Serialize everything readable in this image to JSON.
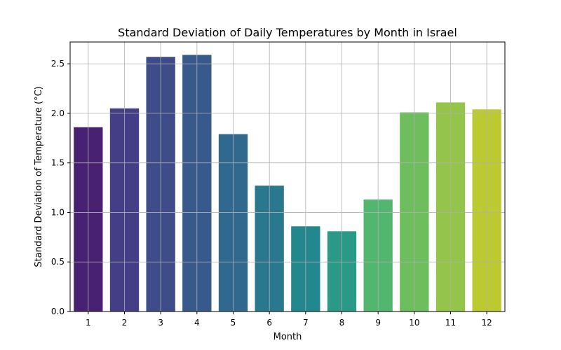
{
  "chart_data": {
    "type": "bar",
    "title": "Standard Deviation of Daily Temperatures by Month in Israel",
    "xlabel": "Month",
    "ylabel": "Standard Deviation of Temperature (°C)",
    "categories": [
      "1",
      "2",
      "3",
      "4",
      "5",
      "6",
      "7",
      "8",
      "9",
      "10",
      "11",
      "12"
    ],
    "values": [
      1.86,
      2.05,
      2.57,
      2.59,
      1.79,
      1.27,
      0.86,
      0.81,
      1.13,
      2.01,
      2.11,
      2.04
    ],
    "bar_colors": [
      "#482173",
      "#433e85",
      "#3e4c8a",
      "#38598c",
      "#31688e",
      "#2a788e",
      "#23888e",
      "#2a9a86",
      "#52b66f",
      "#6ebe5e",
      "#95c44a",
      "#bcca32"
    ],
    "yticks": [
      0.0,
      0.5,
      1.0,
      1.5,
      2.0,
      2.5
    ],
    "ytick_labels": [
      "0.0",
      "0.5",
      "1.0",
      "1.5",
      "2.0",
      "2.5"
    ],
    "ylim": [
      0,
      2.72
    ],
    "grid": true
  }
}
